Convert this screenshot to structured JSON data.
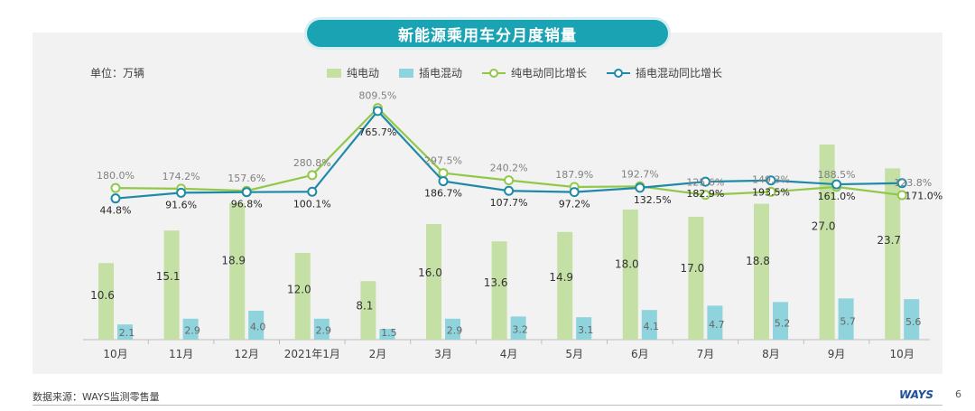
{
  "title": "新能源乘用车分月度销量",
  "unit": "单位：万辆",
  "source": "数据来源：WAYS监测零售量",
  "logo": "WAYS",
  "page_number": "6",
  "colors": {
    "bev_bar": "#c5e0a5",
    "phev_bar": "#8fd3dc",
    "bev_line": "#92c84a",
    "phev_line": "#1e8aa8",
    "title_bg": "#1aa3b3"
  },
  "chart_data": {
    "type": "bar",
    "categories": [
      "10月",
      "11月",
      "12月",
      "2021年1月",
      "2月",
      "3月",
      "4月",
      "5月",
      "6月",
      "7月",
      "8月",
      "9月",
      "10月"
    ],
    "series": [
      {
        "name": "纯电动",
        "kind": "bar",
        "values": [
          10.6,
          15.1,
          18.9,
          12.0,
          8.1,
          16.0,
          13.6,
          14.9,
          18.0,
          17.0,
          18.8,
          27.0,
          23.7
        ],
        "labels": [
          "10.6",
          "15.1",
          "18.9",
          "12.0",
          "8.1",
          "16.0",
          "13.6",
          "14.9",
          "18.0",
          "17.0",
          "18.8",
          "27.0",
          "23.7"
        ]
      },
      {
        "name": "插电混动",
        "kind": "bar",
        "values": [
          2.1,
          2.9,
          4.0,
          2.9,
          1.5,
          2.9,
          3.2,
          3.1,
          4.1,
          4.7,
          5.2,
          5.7,
          5.6
        ],
        "labels": [
          "2.1",
          "2.9",
          "4.0",
          "2.9",
          "1.5",
          "2.9",
          "3.2",
          "3.1",
          "4.1",
          "4.7",
          "5.2",
          "5.7",
          "5.6"
        ]
      },
      {
        "name": "纯电动同比增长",
        "kind": "line",
        "values": [
          180.0,
          174.2,
          157.6,
          280.8,
          809.5,
          297.5,
          240.2,
          187.9,
          192.7,
          125.6,
          149.3,
          188.5,
          123.8
        ],
        "labels": [
          "180.0%",
          "174.2%",
          "157.6%",
          "280.8%",
          "809.5%",
          "297.5%",
          "240.2%",
          "187.9%",
          "192.7%",
          "125.6%",
          "149.3%",
          "188.5%",
          "123.8%"
        ]
      },
      {
        "name": "插电混动同比增长",
        "kind": "line",
        "values": [
          44.8,
          91.6,
          96.8,
          100.1,
          765.7,
          186.7,
          107.7,
          97.2,
          132.5,
          182.9,
          193.5,
          161.0,
          171.0
        ],
        "labels": [
          "44.8%",
          "91.6%",
          "96.8%",
          "100.1%",
          "765.7%",
          "186.7%",
          "107.7%",
          "97.2%",
          "132.5%",
          "182.9%",
          "193.5%",
          "161.0%",
          "171.0%"
        ]
      }
    ],
    "bar_axis_range": [
      0,
      30
    ],
    "line_axis_range": [
      0,
      1000
    ],
    "grid": false,
    "legend_position": "top"
  }
}
